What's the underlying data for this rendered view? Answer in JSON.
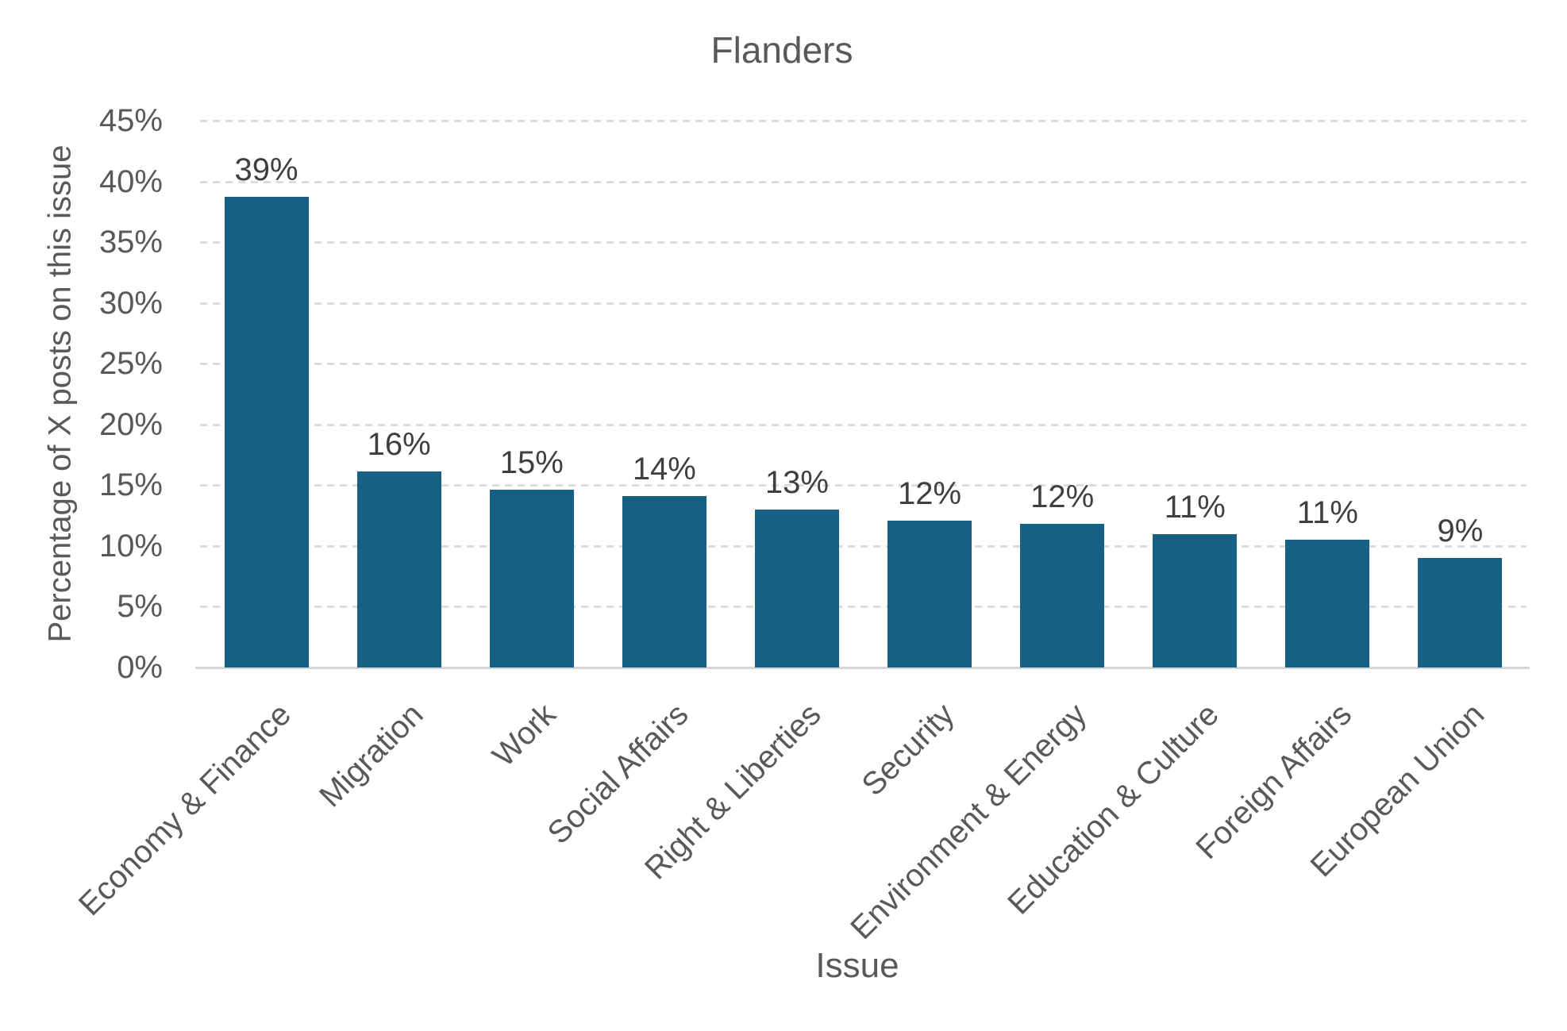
{
  "chart_data": {
    "type": "bar",
    "title": "Flanders",
    "xlabel": "Issue",
    "ylabel": "Percentage of X posts on this issue",
    "categories": [
      "Economy & Finance",
      "Migration",
      "Work",
      "Social Affairs",
      "Right & Liberties",
      "Security",
      "Environment & Energy",
      "Education & Culture",
      "Foreign Affairs",
      "European Union"
    ],
    "values": [
      38.7,
      16.1,
      14.6,
      14.1,
      13.0,
      12.1,
      11.8,
      11.0,
      10.5,
      9.0
    ],
    "bar_labels": [
      "39%",
      "16%",
      "15%",
      "14%",
      "13%",
      "12%",
      "12%",
      "11%",
      "11%",
      "9%"
    ],
    "ylim": [
      0,
      45
    ],
    "ytick_step": 5,
    "ytick_labels": [
      "0%",
      "5%",
      "10%",
      "15%",
      "20%",
      "25%",
      "30%",
      "35%",
      "40%",
      "45%"
    ],
    "grid": "horizontal-dashed",
    "legend": "none",
    "colors": {
      "bar": "#175F84",
      "title_text": "#595959",
      "axis_text": "#595959",
      "bar_label_text": "#3F3F3F",
      "gridline": "#DCDCDC",
      "axis_line": "#D6D6D6"
    }
  }
}
